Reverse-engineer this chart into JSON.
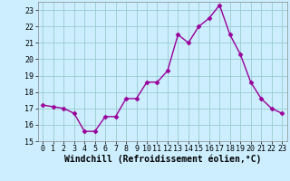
{
  "x": [
    0,
    1,
    2,
    3,
    4,
    5,
    6,
    7,
    8,
    9,
    10,
    11,
    12,
    13,
    14,
    15,
    16,
    17,
    18,
    19,
    20,
    21,
    22,
    23
  ],
  "y": [
    17.2,
    17.1,
    17.0,
    16.7,
    15.6,
    15.6,
    16.5,
    16.5,
    17.6,
    17.6,
    18.6,
    18.6,
    19.3,
    21.5,
    21.0,
    22.0,
    22.5,
    23.3,
    21.5,
    20.3,
    18.6,
    17.6,
    17.0,
    16.7
  ],
  "line_color": "#990099",
  "marker": "D",
  "marker_size": 2.5,
  "bg_color": "#cceeff",
  "grid_color": "#99cccc",
  "xlabel": "Windchill (Refroidissement éolien,°C)",
  "ylim": [
    15,
    23.5
  ],
  "xlim": [
    -0.5,
    23.5
  ],
  "yticks": [
    15,
    16,
    17,
    18,
    19,
    20,
    21,
    22,
    23
  ],
  "xticks": [
    0,
    1,
    2,
    3,
    4,
    5,
    6,
    7,
    8,
    9,
    10,
    11,
    12,
    13,
    14,
    15,
    16,
    17,
    18,
    19,
    20,
    21,
    22,
    23
  ],
  "xlabel_fontsize": 7,
  "tick_fontsize": 6,
  "line_width": 1.0
}
